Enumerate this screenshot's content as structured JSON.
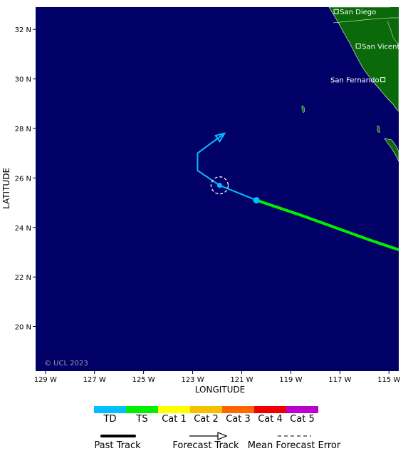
{
  "map": {
    "background_color": "#000066",
    "land_color": "#0a6a0a",
    "copyright": "© UCL 2023",
    "x_axis_title": "LONGITUDE",
    "y_axis_title": "LATITUDE",
    "lon_range": [
      -129.4,
      -114.6
    ],
    "lat_range": [
      18.2,
      32.9
    ],
    "lon_ticks": [
      {
        "value": -129,
        "label": "129 W"
      },
      {
        "value": -127,
        "label": "127 W"
      },
      {
        "value": -125,
        "label": "125 W"
      },
      {
        "value": -123,
        "label": "123 W"
      },
      {
        "value": -121,
        "label": "121 W"
      },
      {
        "value": -119,
        "label": "119 W"
      },
      {
        "value": -117,
        "label": "117 W"
      },
      {
        "value": -115,
        "label": "115 W"
      }
    ],
    "lat_ticks": [
      {
        "value": 32,
        "label": "32 N"
      },
      {
        "value": 30,
        "label": "30 N"
      },
      {
        "value": 28,
        "label": "28 N"
      },
      {
        "value": 26,
        "label": "26 N"
      },
      {
        "value": 24,
        "label": "24 N"
      },
      {
        "value": 22,
        "label": "22 N"
      },
      {
        "value": 20,
        "label": "20 N"
      }
    ],
    "cities": [
      {
        "name": "San Diego",
        "lon": -117.15,
        "lat": 32.72,
        "label_side": "right"
      },
      {
        "name": "San Vicente",
        "lon": -116.25,
        "lat": 31.33,
        "label_side": "right"
      },
      {
        "name": "San Fernando",
        "lon": -115.25,
        "lat": 29.97,
        "label_side": "left"
      }
    ]
  },
  "track": {
    "past": [
      {
        "lon": -114.6,
        "lat": 23.1,
        "category": "TS"
      },
      {
        "lon": -115.8,
        "lat": 23.5,
        "category": "TS"
      },
      {
        "lon": -118.6,
        "lat": 24.5,
        "category": "TS"
      },
      {
        "lon": -120.4,
        "lat": 25.1,
        "category": "TD"
      }
    ],
    "current": {
      "lon": -121.9,
      "lat": 25.7,
      "category": "TD"
    },
    "forecast": [
      {
        "lon": -121.9,
        "lat": 25.7
      },
      {
        "lon": -122.8,
        "lat": 26.3
      },
      {
        "lon": -122.8,
        "lat": 27.0
      },
      {
        "lon": -121.7,
        "lat": 27.8
      }
    ],
    "forecast_color": "#00bfff",
    "error_circle_lon": -121.9,
    "error_circle_lat": 25.7
  },
  "legend": {
    "categories": [
      {
        "label": "TD",
        "color": "#00bfff"
      },
      {
        "label": "TS",
        "color": "#00ee00"
      },
      {
        "label": "Cat 1",
        "color": "#ffff00"
      },
      {
        "label": "Cat 2",
        "color": "#f4c000"
      },
      {
        "label": "Cat 3",
        "color": "#ff6600"
      },
      {
        "label": "Cat 4",
        "color": "#ee0000"
      },
      {
        "label": "Cat 5",
        "color": "#bb00cc"
      }
    ],
    "keys": [
      {
        "label": "Past Track"
      },
      {
        "label": "Forecast Track"
      },
      {
        "label": "Mean Forecast Error"
      }
    ]
  }
}
